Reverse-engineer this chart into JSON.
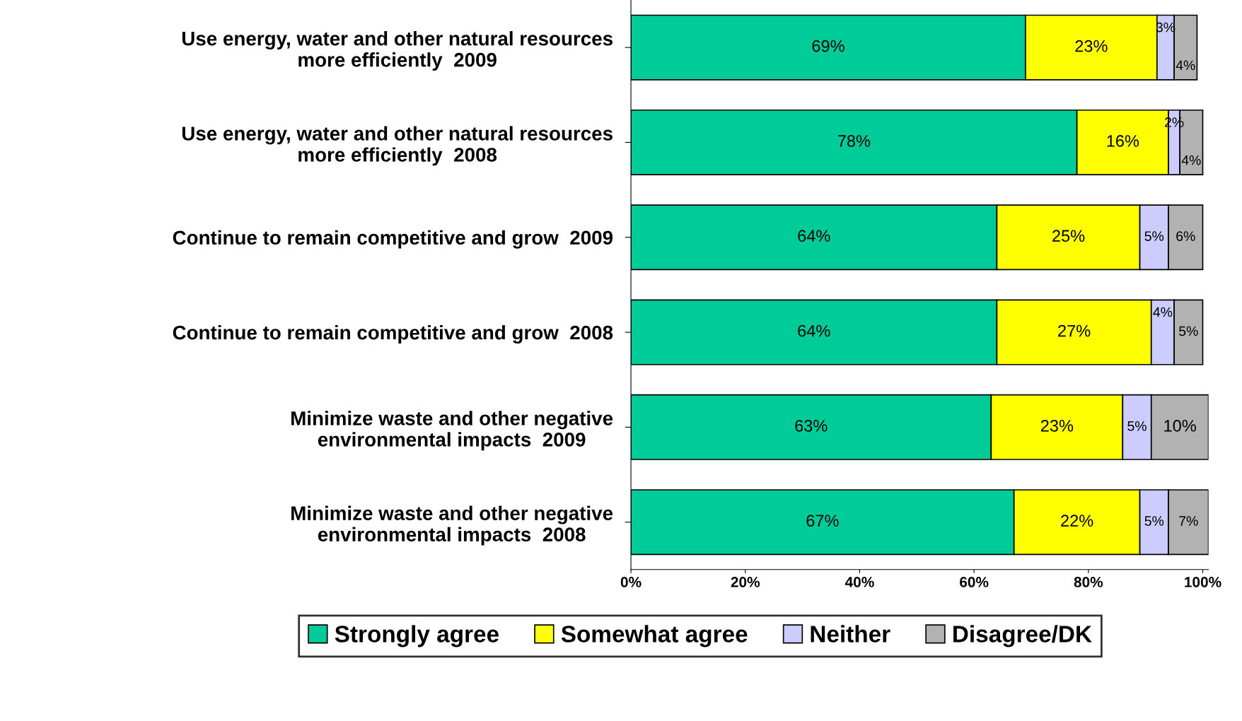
{
  "chart_data": {
    "type": "bar",
    "orientation": "horizontal",
    "stacked": true,
    "categories": [
      "Use energy, water and other natural resources\nmore efficiently  2009",
      "Use energy, water and other natural resources\nmore efficiently  2008",
      "Continue to remain competitive and grow  2009",
      "Continue to remain competitive and grow  2008",
      "Minimize waste and other negative\nenvironmental impacts  2009",
      "Minimize waste and other negative\nenvironmental impacts  2008"
    ],
    "series": [
      {
        "name": "Strongly agree",
        "color": "#00cc99",
        "values": [
          69,
          78,
          64,
          64,
          63,
          67
        ],
        "value_labels": [
          "69%",
          "78%",
          "64%",
          "64%",
          "63%",
          "67%"
        ]
      },
      {
        "name": "Somewhat agree",
        "color": "#ffff00",
        "values": [
          23,
          16,
          25,
          27,
          23,
          22
        ],
        "value_labels": [
          "23%",
          "16%",
          "25%",
          "27%",
          "23%",
          "22%"
        ]
      },
      {
        "name": "Neither",
        "color": "#ccccff",
        "values": [
          3,
          2,
          5,
          4,
          5,
          5
        ],
        "value_labels": [
          "3%",
          "2%",
          "5%",
          "4%",
          "5%",
          "5%"
        ]
      },
      {
        "name": "Disagree/DK",
        "color": "#b2b2b2",
        "values": [
          4,
          4,
          6,
          5,
          10,
          7
        ],
        "value_labels": [
          "4%",
          "4%",
          "6%",
          "5%",
          "10%",
          "7%"
        ]
      }
    ],
    "xlim": [
      0,
      101
    ],
    "xticks": [
      {
        "value": 0,
        "label": "0%"
      },
      {
        "value": 20,
        "label": "20%"
      },
      {
        "value": 40,
        "label": "40%"
      },
      {
        "value": 60,
        "label": "60%"
      },
      {
        "value": 80,
        "label": "80%"
      },
      {
        "value": 100,
        "label": "100%"
      }
    ],
    "grid": false,
    "legend": "bottom"
  }
}
